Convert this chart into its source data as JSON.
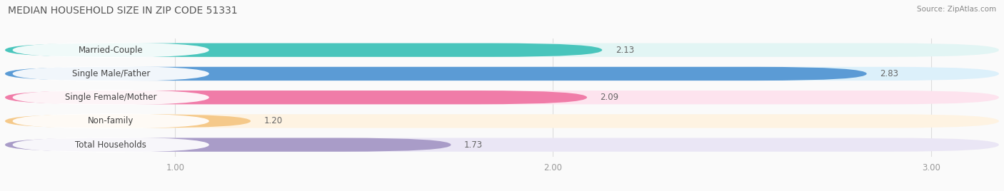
{
  "title": "MEDIAN HOUSEHOLD SIZE IN ZIP CODE 51331",
  "source": "Source: ZipAtlas.com",
  "categories": [
    "Married-Couple",
    "Single Male/Father",
    "Single Female/Mother",
    "Non-family",
    "Total Households"
  ],
  "values": [
    2.13,
    2.83,
    2.09,
    1.2,
    1.73
  ],
  "bar_colors": [
    "#49C5BC",
    "#5B9BD5",
    "#F07CA8",
    "#F5C98A",
    "#A99CC8"
  ],
  "bar_bg_colors": [
    "#E2F5F4",
    "#DCF0FA",
    "#FDE3EE",
    "#FEF3E2",
    "#EAE6F5"
  ],
  "xlim_min": 0.55,
  "xlim_max": 3.18,
  "xticks": [
    1.0,
    2.0,
    3.0
  ],
  "xtick_labels": [
    "1.00",
    "2.00",
    "3.00"
  ],
  "title_fontsize": 10,
  "label_fontsize": 8.5,
  "value_fontsize": 8.5,
  "background_color": "#FAFAFA",
  "bar_height": 0.58,
  "bar_gap": 0.42
}
